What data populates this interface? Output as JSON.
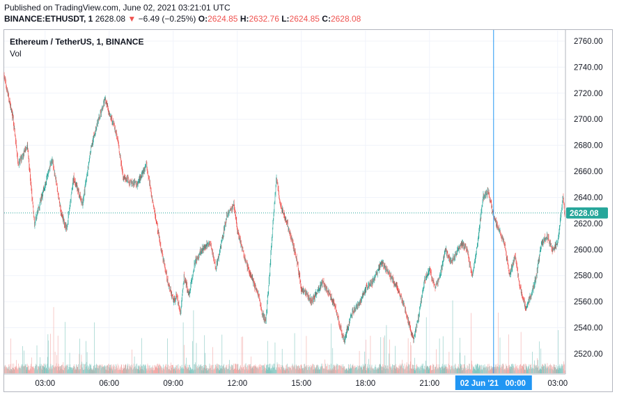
{
  "header": {
    "published": "Published on TradingView.com, June 02, 2021 03:21:01 UTC",
    "symbol": "BINANCE:ETHUSDT, 1",
    "last": "2628.08",
    "change_arrow": "▼",
    "change": "−6.49 (−0.25%)",
    "o_label": "O:",
    "o_value": "2624.85",
    "h_label": "H:",
    "h_value": "2632.76",
    "l_label": "L:",
    "l_value": "2624.85",
    "c_label": "C:",
    "c_value": "2628.08"
  },
  "legend": {
    "title": "Ethereum / TetherUS, 1, BINANCE",
    "volume": "Vol"
  },
  "colors": {
    "up": "#26a69a",
    "down": "#ef5350",
    "up_volume": "#84c7c0",
    "down_volume": "#f3a9a7",
    "crosshair": "#2196f3",
    "price_label_bg": "#26a69a",
    "time_label_bg": "#2196f3",
    "grid": "#f0f3fa"
  },
  "chart_data": {
    "type": "candlestick",
    "symbol": "ETHUSDT",
    "interval": "1",
    "exchange": "BINANCE",
    "ylim": [
      2505,
      2768
    ],
    "y_ticks": [
      "2760.00",
      "2740.00",
      "2720.00",
      "2700.00",
      "2680.00",
      "2660.00",
      "2640.00",
      "2620.00",
      "2600.00",
      "2580.00",
      "2560.00",
      "2540.00",
      "2520.00"
    ],
    "x_ticks": [
      "03:00",
      "06:00",
      "09:00",
      "12:00",
      "15:00",
      "18:00",
      "21:00",
      "03:00"
    ],
    "current_price_label": "2628.08",
    "current_price": 2628.08,
    "crosshair_time_label": "02 Jun '21   00:00",
    "grid": true,
    "price_path": {
      "x": [
        "00:45",
        "01:00",
        "01:30",
        "01:45",
        "02:10",
        "02:30",
        "02:50",
        "03:20",
        "03:45",
        "04:00",
        "04:20",
        "04:45",
        "05:10",
        "05:30",
        "05:50",
        "06:00",
        "06:20",
        "06:40",
        "07:00",
        "07:20",
        "07:45",
        "08:00",
        "08:30",
        "08:45",
        "09:00",
        "09:10",
        "09:20",
        "09:30",
        "09:45",
        "10:00",
        "10:20",
        "10:45",
        "11:00",
        "11:30",
        "11:50",
        "12:00",
        "12:10",
        "12:30",
        "12:45",
        "13:00",
        "13:10",
        "13:20",
        "13:30",
        "13:40",
        "13:50",
        "14:00",
        "14:20",
        "14:45",
        "15:00",
        "15:30",
        "16:00",
        "16:30",
        "17:00",
        "17:20",
        "17:45",
        "18:00",
        "18:20",
        "18:45",
        "19:10",
        "19:30",
        "19:45",
        "20:00",
        "20:15",
        "20:30",
        "20:45",
        "21:00",
        "21:15",
        "21:30",
        "21:45",
        "22:00",
        "22:30",
        "22:45",
        "23:00",
        "23:15",
        "23:30",
        "23:45",
        "00:00",
        "00:15",
        "00:30",
        "00:45",
        "01:00",
        "01:15",
        "01:30",
        "01:45",
        "02:00",
        "02:15",
        "02:30",
        "02:45",
        "03:00",
        "03:15",
        "03:20"
      ],
      "y": [
        2715,
        2740,
        2700,
        2665,
        2680,
        2620,
        2640,
        2670,
        2628,
        2615,
        2655,
        2635,
        2680,
        2700,
        2715,
        2705,
        2690,
        2655,
        2652,
        2650,
        2665,
        2640,
        2595,
        2575,
        2560,
        2565,
        2550,
        2580,
        2565,
        2590,
        2600,
        2605,
        2585,
        2625,
        2635,
        2615,
        2605,
        2585,
        2575,
        2565,
        2550,
        2545,
        2580,
        2620,
        2655,
        2635,
        2620,
        2595,
        2570,
        2560,
        2575,
        2560,
        2530,
        2550,
        2560,
        2570,
        2575,
        2590,
        2580,
        2570,
        2560,
        2545,
        2530,
        2550,
        2575,
        2585,
        2570,
        2580,
        2600,
        2590,
        2605,
        2600,
        2580,
        2605,
        2640,
        2645,
        2625,
        2615,
        2605,
        2580,
        2595,
        2570,
        2555,
        2565,
        2580,
        2605,
        2610,
        2600,
        2605,
        2640,
        2628
      ]
    },
    "volume": "per-minute volume bars below price (unlabeled scale)"
  }
}
